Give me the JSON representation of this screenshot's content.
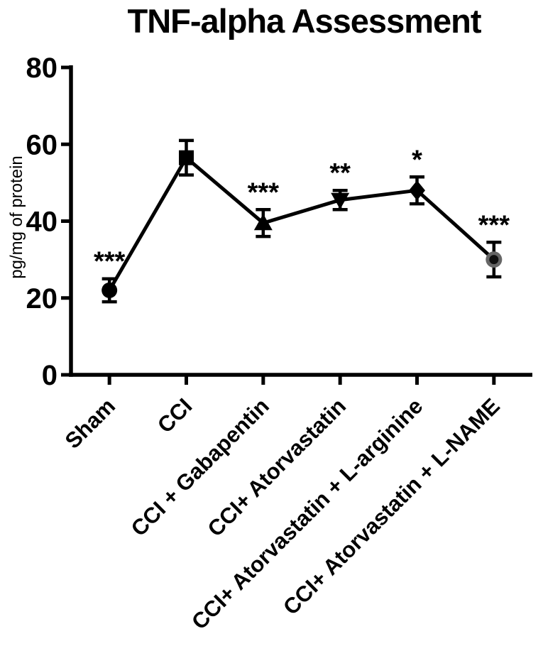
{
  "title": "TNF-alpha Assessment",
  "chart_data": {
    "type": "line",
    "title": "TNF-alpha Assessment",
    "xlabel": "",
    "ylabel": "pg/mg of protein",
    "ylim": [
      0,
      80
    ],
    "yticks": [
      0,
      20,
      40,
      60,
      80
    ],
    "grid": false,
    "legend_position": "none",
    "x_tick_rotation_deg": 45,
    "categories": [
      "Sham",
      "CCI",
      "CCI + Gabapentin",
      "CCI+ Atorvastatin",
      "CCI+ Atorvastatin + L-arginine",
      "CCI+ Atorvastatin + L-NAME"
    ],
    "series": [
      {
        "name": "TNF-alpha (pg/mg of protein)",
        "values": [
          22,
          56.5,
          39.5,
          45.5,
          48,
          30
        ],
        "errors": [
          3,
          4.5,
          3.5,
          2.5,
          3.5,
          4.5
        ],
        "significance": [
          "***",
          "",
          "***",
          "**",
          "*",
          "***"
        ],
        "markers": [
          "circle",
          "square",
          "triangle-up",
          "triangle-down",
          "diamond",
          "circle-gray"
        ]
      }
    ]
  },
  "colors": {
    "foreground": "#000000",
    "background": "#ffffff",
    "gray_marker_halo": "#666666",
    "gray_marker_core": "#111111"
  }
}
